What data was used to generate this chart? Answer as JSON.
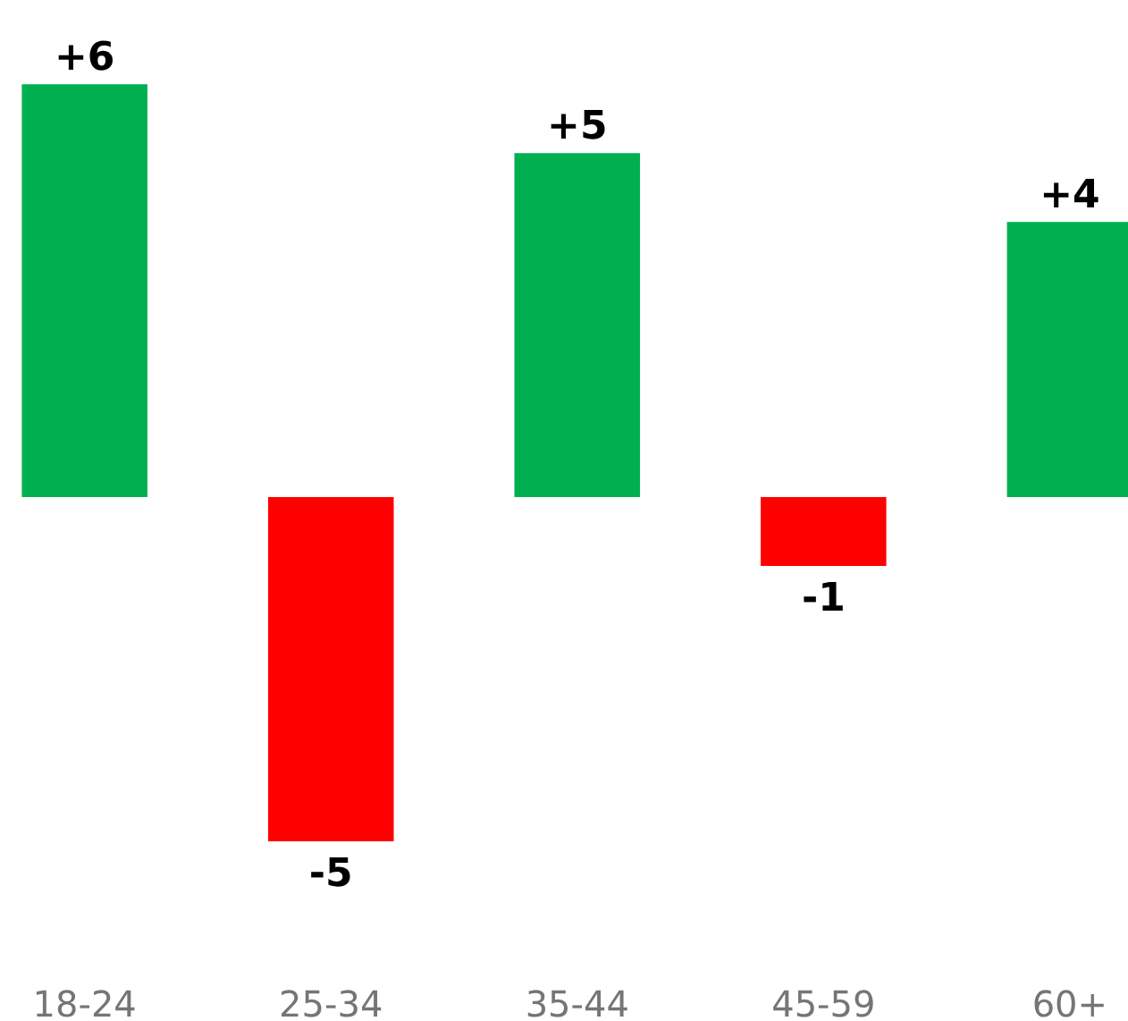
{
  "chart_data": {
    "type": "bar",
    "categories": [
      "18-24",
      "25-34",
      "35-44",
      "45-59",
      "60+"
    ],
    "values": [
      6,
      -5,
      5,
      -1,
      4
    ],
    "colors": [
      "#00b050",
      "#ff0000",
      "#00b050",
      "#ff0000",
      "#00b050"
    ],
    "value_labels": [
      "+6",
      "-5",
      "+5",
      "-1",
      "+4"
    ],
    "grid": false
  }
}
